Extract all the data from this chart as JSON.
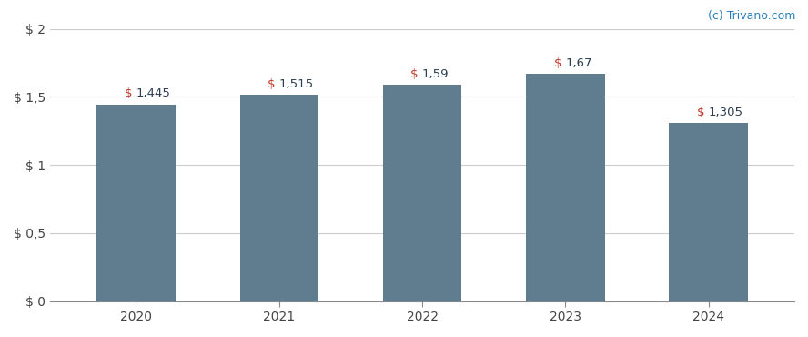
{
  "categories": [
    "2020",
    "2021",
    "2022",
    "2023",
    "2024"
  ],
  "values": [
    1.445,
    1.515,
    1.59,
    1.67,
    1.305
  ],
  "bar_labels": [
    "$ 1,445",
    "$ 1,515",
    "$ 1,59",
    "$ 1,67",
    "$ 1,305"
  ],
  "bar_color": "#607d8f",
  "ylim": [
    0,
    2.0
  ],
  "yticks": [
    0,
    0.5,
    1.0,
    1.5,
    2.0
  ],
  "ytick_labels": [
    "$ 0",
    "$ 0,5",
    "$ 1",
    "$ 1,5",
    "$ 2"
  ],
  "background_color": "#ffffff",
  "grid_color": "#cccccc",
  "label_color_dollar": "#c0392b",
  "label_color_number": "#2c3e50",
  "watermark": "(c) Trivano.com",
  "watermark_color": "#2980b9",
  "bar_width": 0.55,
  "label_fontsize": 9.5,
  "tick_fontsize": 10,
  "watermark_fontsize": 9
}
